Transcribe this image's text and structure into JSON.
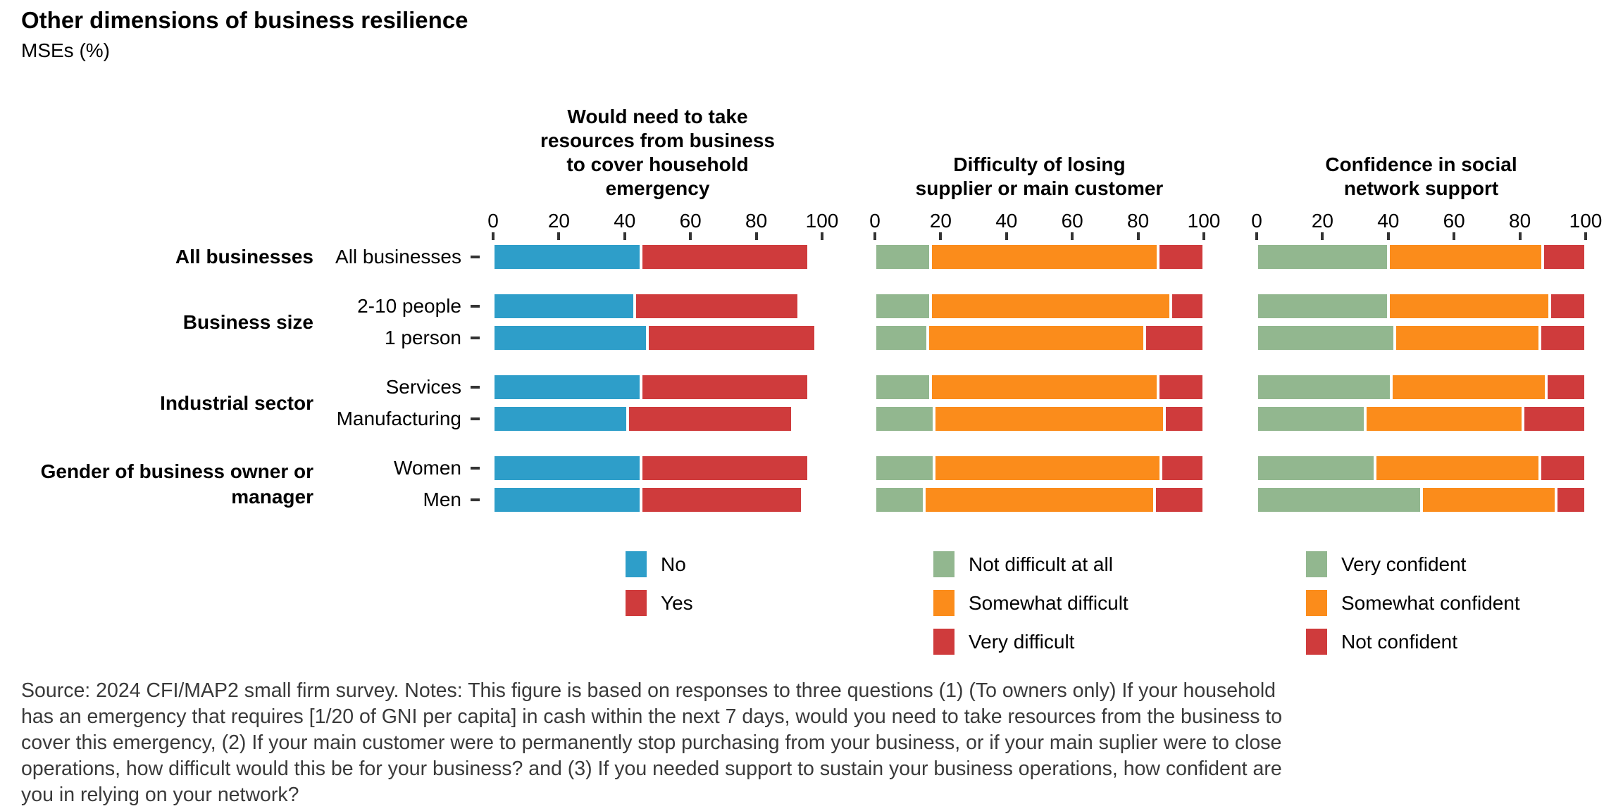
{
  "title": "Other dimensions of business resilience",
  "subtitle": "MSEs (%)",
  "row_groups": [
    {
      "label": "All businesses",
      "rows": [
        "All businesses"
      ]
    },
    {
      "label": "Business size",
      "rows": [
        "2-10 people",
        "1 person"
      ]
    },
    {
      "label": "Industrial sector",
      "rows": [
        "Services",
        "Manufacturing"
      ]
    },
    {
      "label": "Gender of business owner or manager",
      "rows": [
        "Women",
        "Men"
      ]
    }
  ],
  "colors": {
    "blue": "#2E9EC9",
    "red": "#CF3B3C",
    "green": "#92B78F",
    "orange": "#FB8C1B",
    "tick": "#333333",
    "note_text": "#3a3a3a"
  },
  "chart_data": [
    {
      "type": "bar",
      "orientation": "horizontal",
      "stacked": true,
      "title": "Would need to take resources from business to cover household emergency",
      "title_lines": [
        "Would need to take",
        "resources from business",
        "to cover household",
        "emergency"
      ],
      "categories": [
        "All businesses",
        "2-10 people",
        "1 person",
        "Services",
        "Manufacturing",
        "Women",
        "Men"
      ],
      "xlim": [
        0,
        100
      ],
      "xticks": [
        0,
        20,
        40,
        60,
        80,
        100
      ],
      "grid": false,
      "legend_position": "bottom",
      "series": [
        {
          "name": "No",
          "color": "#2E9EC9",
          "values": [
            45,
            43,
            47,
            45,
            41,
            45,
            45
          ]
        },
        {
          "name": "Yes",
          "color": "#CF3B3C",
          "values": [
            51,
            50,
            51,
            51,
            50,
            51,
            49
          ]
        }
      ]
    },
    {
      "type": "bar",
      "orientation": "horizontal",
      "stacked": true,
      "title": "Difficulty of losing supplier or main customer",
      "title_lines": [
        "Difficulty of losing",
        "supplier or main customer"
      ],
      "categories": [
        "All businesses",
        "2-10 people",
        "1 person",
        "Services",
        "Manufacturing",
        "Women",
        "Men"
      ],
      "xlim": [
        0,
        100
      ],
      "xticks": [
        0,
        20,
        40,
        60,
        80,
        100
      ],
      "grid": false,
      "legend_position": "bottom",
      "series": [
        {
          "name": "Not difficult at all",
          "color": "#92B78F",
          "values": [
            17,
            17,
            16,
            17,
            18,
            18,
            15
          ]
        },
        {
          "name": "Somewhat difficult",
          "color": "#FB8C1B",
          "values": [
            69,
            73,
            66,
            69,
            70,
            69,
            70
          ]
        },
        {
          "name": "Very difficult",
          "color": "#CF3B3C",
          "values": [
            14,
            10,
            18,
            14,
            12,
            13,
            15
          ]
        }
      ]
    },
    {
      "type": "bar",
      "orientation": "horizontal",
      "stacked": true,
      "title": "Confidence in social network support",
      "title_lines": [
        "Confidence in social",
        "network support"
      ],
      "categories": [
        "All businesses",
        "2-10 people",
        "1 person",
        "Services",
        "Manufacturing",
        "Women",
        "Men"
      ],
      "xlim": [
        0,
        100
      ],
      "xticks": [
        0,
        20,
        40,
        60,
        80,
        100
      ],
      "grid": false,
      "legend_position": "bottom",
      "series": [
        {
          "name": "Very confident",
          "color": "#92B78F",
          "values": [
            40,
            40,
            42,
            41,
            33,
            36,
            50
          ]
        },
        {
          "name": "Somewhat confident",
          "color": "#FB8C1B",
          "values": [
            47,
            49,
            44,
            47,
            48,
            50,
            41
          ]
        },
        {
          "name": "Not confident",
          "color": "#CF3B3C",
          "values": [
            13,
            11,
            14,
            12,
            19,
            14,
            9
          ]
        }
      ]
    }
  ],
  "source_note_lines": [
    "Source: 2024 CFI/MAP2 small firm survey. Notes: This figure is based on responses to three questions (1) (To owners only) If your household",
    "has an emergency that requires [1/20 of GNI per capita] in cash within the next 7 days, would you need to take resources from the business to",
    "cover this emergency, (2) If your main customer were to permanently stop purchasing from your business, or if your main suplier were to close",
    "operations, how difficult would this be for your business? and (3) If you needed support to sustain your business operations, how confident are",
    "you in relying on your network?"
  ],
  "source_note": "Source: 2024 CFI/MAP2 small firm survey. Notes: This figure is based on responses to three questions (1) (To owners only) If your household has an emergency that requires [1/20 of GNI per capita] in cash within the next 7 days, would you need to take resources from the business to cover this emergency, (2) If your main customer were to permanently stop purchasing from your business, or if your main suplier were to close operations, how difficult would this be for your business? and (3) If you needed support to sustain your business operations, how confident are you in relying on your network?"
}
